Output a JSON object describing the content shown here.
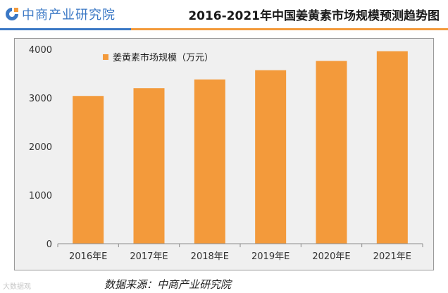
{
  "header": {
    "logo_text": "中商产业研究院",
    "title": "2016-2021年中国姜黄素市场规模预测趋势图"
  },
  "footer": {
    "source": "数据来源：中商产业研究院",
    "watermark": "大数据观"
  },
  "colors": {
    "bar": "#f39a3b",
    "brand_blue": "#3b78c5",
    "accent_orange": "#f39a3b",
    "panel_bg": "#f0f0f0"
  },
  "chart_data": {
    "type": "bar",
    "categories": [
      "2016年E",
      "2017年E",
      "2018年E",
      "2019年E",
      "2020年E",
      "2021年E"
    ],
    "series": [
      {
        "name": "姜黄素市场规模（万元）",
        "values": [
          3040,
          3200,
          3380,
          3570,
          3760,
          3960
        ]
      }
    ],
    "ylim": [
      0,
      4000
    ],
    "yticks": [
      "0",
      "1000",
      "2000",
      "3000",
      "4000"
    ],
    "grid": false,
    "legend": "top-left"
  }
}
